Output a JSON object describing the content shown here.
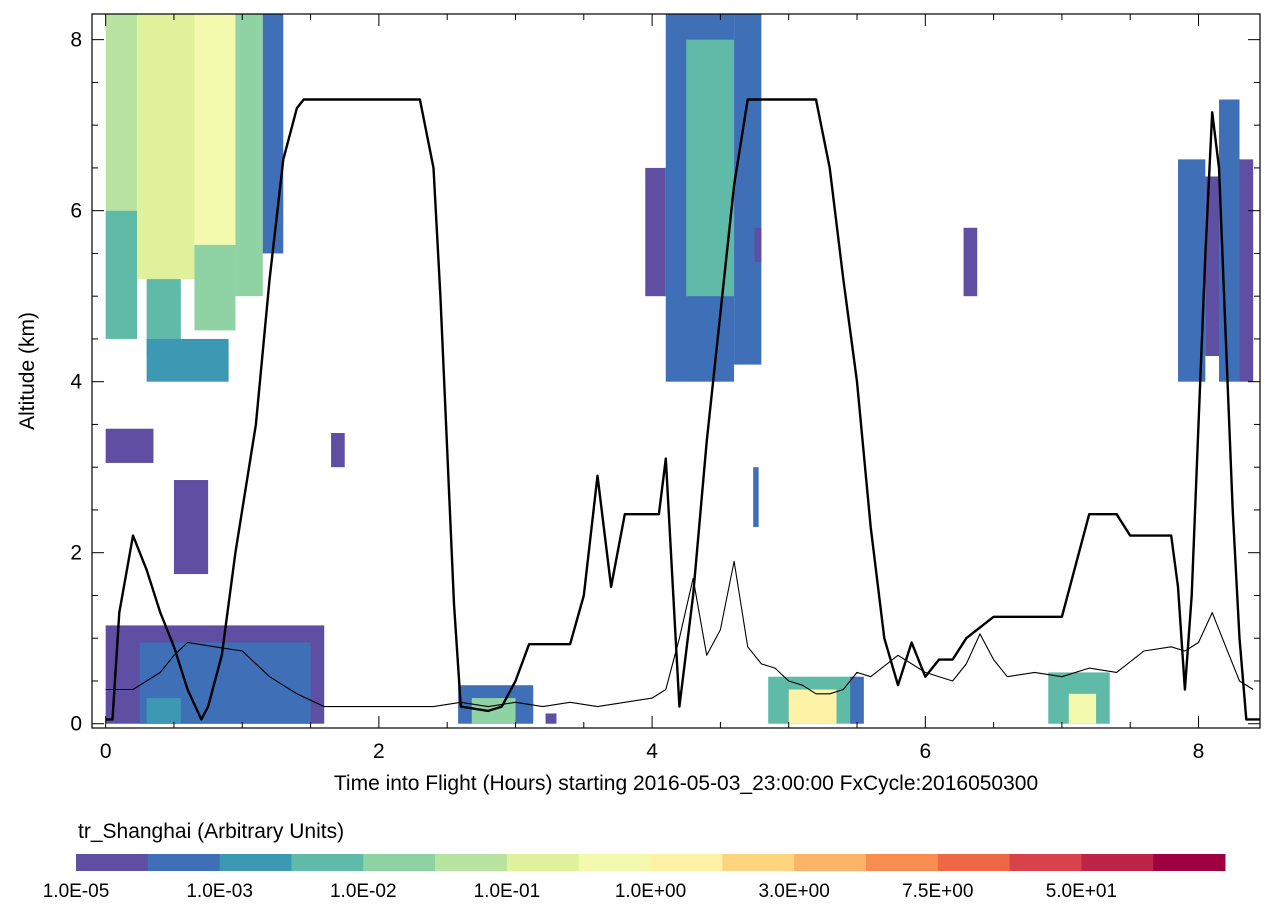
{
  "chart_data": {
    "type": "heatmap",
    "xlabel": "Time into Flight (Hours) starting 2016-05-03_23:00:00  FxCycle:2016050300",
    "ylabel": "Altitude (km)",
    "xlim": [
      -0.1,
      8.45
    ],
    "ylim": [
      -0.05,
      8.3
    ],
    "xticks": [
      0,
      2,
      4,
      6,
      8
    ],
    "yticks": [
      0,
      2,
      4,
      6,
      8
    ],
    "colorbar": {
      "title": "tr_Shanghai (Arbitrary Units)",
      "colors": [
        "#5e4fa2",
        "#3f6fb6",
        "#3d98b4",
        "#5fbaa7",
        "#8fd2a4",
        "#b9e3a0",
        "#dff19a",
        "#f4faad",
        "#fef2a6",
        "#fdd57f",
        "#fcb468",
        "#f88d52",
        "#ef6845",
        "#d8424d",
        "#bd2548",
        "#9e0142"
      ],
      "tick_labels": [
        "1.0E-05",
        "1.0E-03",
        "1.0E-02",
        "1.0E-01",
        "1.0E+00",
        "3.0E+00",
        "7.5E+00",
        "5.0E+01"
      ]
    },
    "tracer_field": [
      {
        "x0": 0.0,
        "x1": 0.23,
        "y0": 6.0,
        "y1": 8.3,
        "level": 5
      },
      {
        "x0": 0.0,
        "x1": 0.23,
        "y0": 4.5,
        "y1": 6.0,
        "level": 3
      },
      {
        "x0": 0.23,
        "x1": 0.65,
        "y0": 5.2,
        "y1": 8.3,
        "level": 6
      },
      {
        "x0": 0.3,
        "x1": 0.55,
        "y0": 4.3,
        "y1": 5.2,
        "level": 3
      },
      {
        "x0": 0.65,
        "x1": 0.95,
        "y0": 5.6,
        "y1": 8.3,
        "level": 7
      },
      {
        "x0": 0.65,
        "x1": 0.95,
        "y0": 4.6,
        "y1": 5.6,
        "level": 4
      },
      {
        "x0": 0.95,
        "x1": 1.15,
        "y0": 5.0,
        "y1": 8.3,
        "level": 4
      },
      {
        "x0": 1.15,
        "x1": 1.3,
        "y0": 5.5,
        "y1": 8.3,
        "level": 1
      },
      {
        "x0": 0.3,
        "x1": 0.9,
        "y0": 4.0,
        "y1": 4.5,
        "level": 2
      },
      {
        "x0": 0.0,
        "x1": 0.35,
        "y0": 3.05,
        "y1": 3.45,
        "level": 0
      },
      {
        "x0": 0.5,
        "x1": 0.75,
        "y0": 1.75,
        "y1": 2.85,
        "level": 0
      },
      {
        "x0": 1.65,
        "x1": 1.75,
        "y0": 3.0,
        "y1": 3.4,
        "level": 0
      },
      {
        "x0": 0.0,
        "x1": 1.6,
        "y0": 0.0,
        "y1": 1.15,
        "level": 0
      },
      {
        "x0": 0.25,
        "x1": 1.5,
        "y0": 0.0,
        "y1": 0.95,
        "level": 1
      },
      {
        "x0": 0.3,
        "x1": 0.55,
        "y0": 0.0,
        "y1": 0.3,
        "level": 2
      },
      {
        "x0": 2.58,
        "x1": 3.13,
        "y0": 0.0,
        "y1": 0.45,
        "level": 1
      },
      {
        "x0": 2.68,
        "x1": 3.0,
        "y0": 0.0,
        "y1": 0.3,
        "level": 4
      },
      {
        "x0": 3.22,
        "x1": 3.3,
        "y0": 0.0,
        "y1": 0.12,
        "level": 0
      },
      {
        "x0": 3.95,
        "x1": 4.1,
        "y0": 5.0,
        "y1": 6.5,
        "level": 0
      },
      {
        "x0": 4.1,
        "x1": 4.6,
        "y0": 4.0,
        "y1": 8.3,
        "level": 1
      },
      {
        "x0": 4.25,
        "x1": 4.6,
        "y0": 5.0,
        "y1": 8.0,
        "level": 3
      },
      {
        "x0": 4.6,
        "x1": 4.8,
        "y0": 4.2,
        "y1": 8.3,
        "level": 1
      },
      {
        "x0": 4.75,
        "x1": 4.8,
        "y0": 5.4,
        "y1": 5.8,
        "level": 0
      },
      {
        "x0": 4.74,
        "x1": 4.78,
        "y0": 2.3,
        "y1": 3.0,
        "level": 1
      },
      {
        "x0": 4.85,
        "x1": 5.5,
        "y0": 0.0,
        "y1": 0.55,
        "level": 3
      },
      {
        "x0": 5.0,
        "x1": 5.35,
        "y0": 0.0,
        "y1": 0.4,
        "level": 8
      },
      {
        "x0": 5.45,
        "x1": 5.55,
        "y0": 0.0,
        "y1": 0.55,
        "level": 1
      },
      {
        "x0": 6.28,
        "x1": 6.38,
        "y0": 5.0,
        "y1": 5.8,
        "level": 0
      },
      {
        "x0": 6.9,
        "x1": 7.35,
        "y0": 0.0,
        "y1": 0.6,
        "level": 3
      },
      {
        "x0": 7.05,
        "x1": 7.25,
        "y0": 0.0,
        "y1": 0.35,
        "level": 7
      },
      {
        "x0": 7.85,
        "x1": 8.05,
        "y0": 4.0,
        "y1": 6.6,
        "level": 1
      },
      {
        "x0": 8.05,
        "x1": 8.15,
        "y0": 4.3,
        "y1": 6.4,
        "level": 0
      },
      {
        "x0": 8.15,
        "x1": 8.3,
        "y0": 4.0,
        "y1": 7.3,
        "level": 1
      },
      {
        "x0": 8.3,
        "x1": 8.4,
        "y0": 4.0,
        "y1": 6.6,
        "level": 0
      }
    ],
    "series": [
      {
        "style": "thick",
        "x": [
          0,
          0.05,
          0.1,
          0.2,
          0.3,
          0.4,
          0.5,
          0.6,
          0.7,
          0.75,
          0.85,
          0.95,
          1.1,
          1.2,
          1.3,
          1.4,
          1.45,
          1.55,
          1.6,
          1.7,
          1.8,
          1.9,
          2.0,
          2.2,
          2.3,
          2.4,
          2.45,
          2.5,
          2.55,
          2.6,
          2.8,
          2.9,
          3.0,
          3.1,
          3.2,
          3.3,
          3.4,
          3.5,
          3.6,
          3.7,
          3.8,
          3.9,
          4.0,
          4.05,
          4.1,
          4.2,
          4.3,
          4.4,
          4.5,
          4.6,
          4.7,
          4.8,
          4.9,
          5.0,
          5.1,
          5.2,
          5.3,
          5.4,
          5.5,
          5.6,
          5.7,
          5.8,
          5.9,
          6.0,
          6.1,
          6.2,
          6.3,
          6.5,
          6.7,
          6.9,
          7.0,
          7.2,
          7.4,
          7.5,
          7.6,
          7.7,
          7.8,
          7.85,
          7.9,
          7.95,
          8.0,
          8.05,
          8.1,
          8.15,
          8.2,
          8.25,
          8.3,
          8.35,
          8.45
        ],
        "y": [
          0.05,
          0.05,
          1.3,
          2.2,
          1.8,
          1.3,
          0.9,
          0.4,
          0.05,
          0.2,
          0.8,
          2.0,
          3.5,
          5.2,
          6.6,
          7.2,
          7.3,
          7.3,
          7.3,
          7.3,
          7.3,
          7.3,
          7.3,
          7.3,
          7.3,
          6.5,
          5.0,
          3.2,
          1.4,
          0.2,
          0.15,
          0.2,
          0.5,
          0.93,
          0.93,
          0.93,
          0.93,
          1.5,
          2.9,
          1.6,
          2.45,
          2.45,
          2.45,
          2.45,
          3.1,
          0.2,
          1.5,
          3.3,
          4.8,
          6.3,
          7.3,
          7.3,
          7.3,
          7.3,
          7.3,
          7.3,
          6.5,
          5.2,
          4.0,
          2.3,
          1.0,
          0.45,
          0.95,
          0.55,
          0.75,
          0.75,
          1.0,
          1.25,
          1.25,
          1.25,
          1.25,
          2.45,
          2.45,
          2.2,
          2.2,
          2.2,
          2.2,
          1.6,
          0.4,
          1.5,
          3.5,
          5.5,
          7.15,
          6.5,
          4.5,
          2.5,
          1.0,
          0.05,
          0.05
        ]
      },
      {
        "style": "thin",
        "x": [
          0,
          0.2,
          0.4,
          0.5,
          0.6,
          0.8,
          1.0,
          1.2,
          1.4,
          1.6,
          1.8,
          2.0,
          2.2,
          2.4,
          2.6,
          2.8,
          3.0,
          3.2,
          3.4,
          3.6,
          3.8,
          4.0,
          4.1,
          4.2,
          4.3,
          4.4,
          4.5,
          4.6,
          4.7,
          4.8,
          4.9,
          5.0,
          5.1,
          5.2,
          5.3,
          5.4,
          5.5,
          5.6,
          5.8,
          6.0,
          6.2,
          6.3,
          6.4,
          6.5,
          6.6,
          6.8,
          7.0,
          7.2,
          7.4,
          7.6,
          7.8,
          7.9,
          8.0,
          8.1,
          8.2,
          8.3,
          8.4
        ],
        "y": [
          0.4,
          0.4,
          0.6,
          0.8,
          0.95,
          0.9,
          0.85,
          0.55,
          0.35,
          0.2,
          0.2,
          0.2,
          0.2,
          0.2,
          0.25,
          0.2,
          0.25,
          0.2,
          0.25,
          0.2,
          0.25,
          0.3,
          0.4,
          1.0,
          1.7,
          0.8,
          1.1,
          1.9,
          0.9,
          0.7,
          0.65,
          0.5,
          0.45,
          0.35,
          0.35,
          0.4,
          0.6,
          0.55,
          0.8,
          0.6,
          0.5,
          0.7,
          1.05,
          0.75,
          0.55,
          0.6,
          0.55,
          0.65,
          0.6,
          0.85,
          0.9,
          0.85,
          0.95,
          1.3,
          0.9,
          0.5,
          0.4
        ]
      }
    ]
  }
}
